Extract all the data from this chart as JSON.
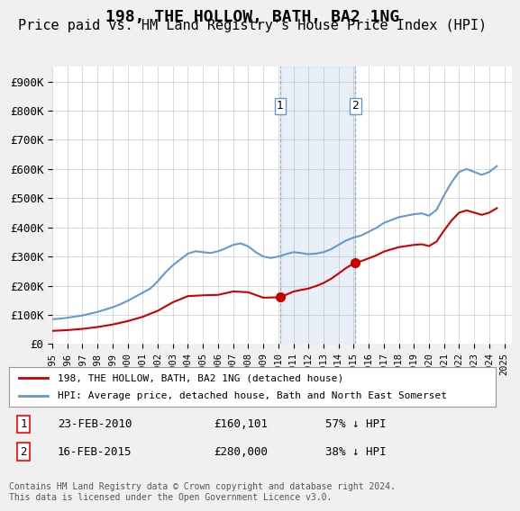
{
  "title": "198, THE HOLLOW, BATH, BA2 1NG",
  "subtitle": "Price paid vs. HM Land Registry's House Price Index (HPI)",
  "title_fontsize": 13,
  "subtitle_fontsize": 11,
  "ylabel_ticks": [
    "£0",
    "£100K",
    "£200K",
    "£300K",
    "£400K",
    "£500K",
    "£600K",
    "£700K",
    "£800K",
    "£900K"
  ],
  "ytick_values": [
    0,
    100000,
    200000,
    300000,
    400000,
    500000,
    600000,
    700000,
    800000,
    900000
  ],
  "ylim": [
    0,
    950000
  ],
  "xlim_start": 1995.0,
  "xlim_end": 2025.5,
  "background_color": "#f0f0f0",
  "plot_bg_color": "#ffffff",
  "grid_color": "#cccccc",
  "hpi_color": "#6699cc",
  "price_color": "#cc0000",
  "sale1_date": 2010.13,
  "sale1_price": 160101,
  "sale2_date": 2015.12,
  "sale2_price": 280000,
  "annotation1_label": "1",
  "annotation2_label": "2",
  "legend_label_red": "198, THE HOLLOW, BATH, BA2 1NG (detached house)",
  "legend_label_blue": "HPI: Average price, detached house, Bath and North East Somerset",
  "table_row1": "1    23-FEB-2010    £160,101    57% ↓ HPI",
  "table_row2": "2    16-FEB-2015    £280,000    38% ↓ HPI",
  "footnote": "Contains HM Land Registry data © Crown copyright and database right 2024.\nThis data is licensed under the Open Government Licence v3.0.",
  "hpi_years": [
    1995.0,
    1995.5,
    1996.0,
    1996.5,
    1997.0,
    1997.5,
    1998.0,
    1998.5,
    1999.0,
    1999.5,
    2000.0,
    2000.5,
    2001.0,
    2001.5,
    2002.0,
    2002.5,
    2003.0,
    2003.5,
    2004.0,
    2004.5,
    2005.0,
    2005.5,
    2006.0,
    2006.5,
    2007.0,
    2007.5,
    2008.0,
    2008.5,
    2009.0,
    2009.5,
    2010.0,
    2010.5,
    2011.0,
    2011.5,
    2012.0,
    2012.5,
    2013.0,
    2013.5,
    2014.0,
    2014.5,
    2015.0,
    2015.5,
    2016.0,
    2016.5,
    2017.0,
    2017.5,
    2018.0,
    2018.5,
    2019.0,
    2019.5,
    2020.0,
    2020.5,
    2021.0,
    2021.5,
    2022.0,
    2022.5,
    2023.0,
    2023.5,
    2024.0,
    2024.5
  ],
  "hpi_values": [
    85000,
    87000,
    90000,
    94000,
    98000,
    104000,
    110000,
    118000,
    126000,
    136000,
    148000,
    162000,
    176000,
    190000,
    215000,
    245000,
    270000,
    290000,
    310000,
    318000,
    315000,
    312000,
    318000,
    328000,
    340000,
    345000,
    335000,
    315000,
    300000,
    295000,
    300000,
    308000,
    315000,
    312000,
    308000,
    310000,
    315000,
    325000,
    340000,
    355000,
    365000,
    372000,
    385000,
    398000,
    415000,
    425000,
    435000,
    440000,
    445000,
    448000,
    440000,
    460000,
    510000,
    555000,
    590000,
    600000,
    590000,
    580000,
    590000,
    610000
  ],
  "xtick_years": [
    1995,
    1996,
    1997,
    1998,
    1999,
    2000,
    2001,
    2002,
    2003,
    2004,
    2005,
    2006,
    2007,
    2008,
    2009,
    2010,
    2011,
    2012,
    2013,
    2014,
    2015,
    2016,
    2017,
    2018,
    2019,
    2020,
    2021,
    2022,
    2023,
    2024,
    2025
  ]
}
